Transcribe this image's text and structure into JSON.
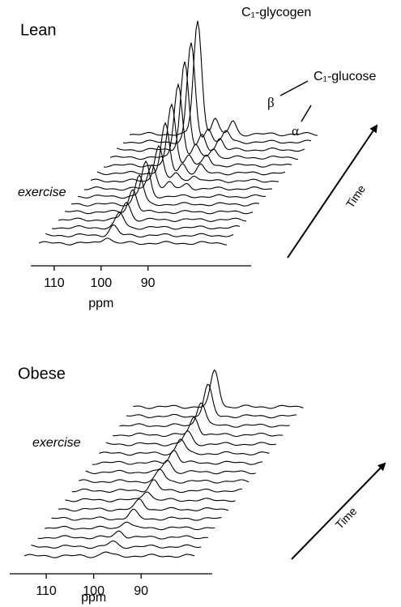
{
  "chart_data": [
    {
      "type": "waterfall",
      "label": "Lean",
      "annotation": "exercise",
      "time_label": "Time",
      "xlabel": "ppm",
      "xlim": [
        115,
        68
      ],
      "xticks": [
        110,
        100,
        90
      ],
      "peak_label": "C₁-glycogen",
      "glucose_label": "C₁-glucose",
      "beta_label": "β",
      "alpha_label": "α",
      "values": [
        8,
        12,
        18,
        22,
        28,
        36,
        42,
        30,
        45,
        60,
        75,
        92,
        108,
        122,
        140
      ],
      "beta": [
        0,
        0,
        0,
        0,
        0,
        0,
        0,
        8,
        10,
        12,
        14,
        16,
        18,
        18,
        20
      ],
      "alpha": [
        0,
        0,
        0,
        0,
        0,
        0,
        0,
        6,
        8,
        10,
        12,
        12,
        14,
        14,
        16
      ]
    },
    {
      "type": "waterfall",
      "label": "Obese",
      "annotation": "exercise",
      "time_label": "Time",
      "xlabel": "ppm",
      "xlim": [
        117.7,
        75
      ],
      "xticks": [
        110,
        100,
        90
      ],
      "values": [
        5,
        6,
        8,
        9,
        10,
        12,
        12,
        13,
        14,
        15,
        16,
        18,
        15,
        22,
        30,
        38,
        45
      ]
    }
  ]
}
